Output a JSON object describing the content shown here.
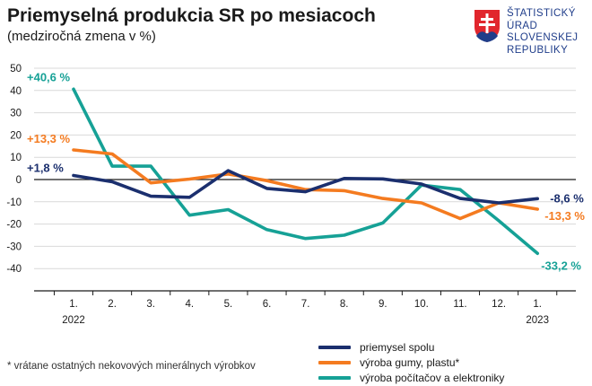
{
  "header": {
    "title": "Priemyselná produkcia SR po mesiacoch",
    "subtitle": "(medziročná zmena v %)"
  },
  "logo": {
    "lines": [
      "ŠTATISTICKÝ",
      "ÚRAD",
      "SLOVENSKEJ",
      "REPUBLIKY"
    ],
    "colors": {
      "red": "#e1262d",
      "blue": "#1f3d8a",
      "white": "#ffffff"
    }
  },
  "footnote": "* vrátane ostatných nekovových minerálnych výrobkov",
  "chart_data": {
    "type": "line",
    "categories": [
      "1.",
      "2.",
      "3.",
      "4.",
      "5.",
      "6.",
      "7.",
      "8.",
      "9.",
      "10.",
      "11.",
      "12.",
      "1."
    ],
    "year_labels": [
      {
        "index": 0,
        "text": "2022"
      },
      {
        "index": 12,
        "text": "2023"
      }
    ],
    "ylim": [
      -50,
      50
    ],
    "yticks": [
      50,
      40,
      30,
      20,
      10,
      0,
      -10,
      -20,
      -30,
      -40
    ],
    "grid": true,
    "legend_position": "bottom-right",
    "series": [
      {
        "name": "priemysel spolu",
        "color": "#1b2f6e",
        "values": [
          1.8,
          -1.0,
          -7.5,
          -8.0,
          4.0,
          -4.0,
          -5.5,
          0.5,
          0.3,
          -2.0,
          -8.5,
          -10.5,
          -8.6
        ],
        "start_label": "+1,8 %",
        "end_label": "-8,6 %"
      },
      {
        "name": "výroba gumy, plastu*",
        "color": "#f47b20",
        "values": [
          13.3,
          11.5,
          -1.5,
          0.2,
          2.5,
          -0.5,
          -4.5,
          -5.0,
          -8.5,
          -10.5,
          -17.5,
          -10.5,
          -13.3
        ],
        "start_label": "+13,3 %",
        "end_label": "-13,3 %"
      },
      {
        "name": "výroba počítačov a elektroniky",
        "color": "#16a196",
        "values": [
          40.6,
          6.0,
          6.0,
          -16.0,
          -13.5,
          -22.5,
          -26.5,
          -25.0,
          -19.5,
          -2.5,
          -4.5,
          -18.5,
          -33.2
        ],
        "start_label": "+40,6 %",
        "end_label": "-33,2 %"
      }
    ]
  }
}
